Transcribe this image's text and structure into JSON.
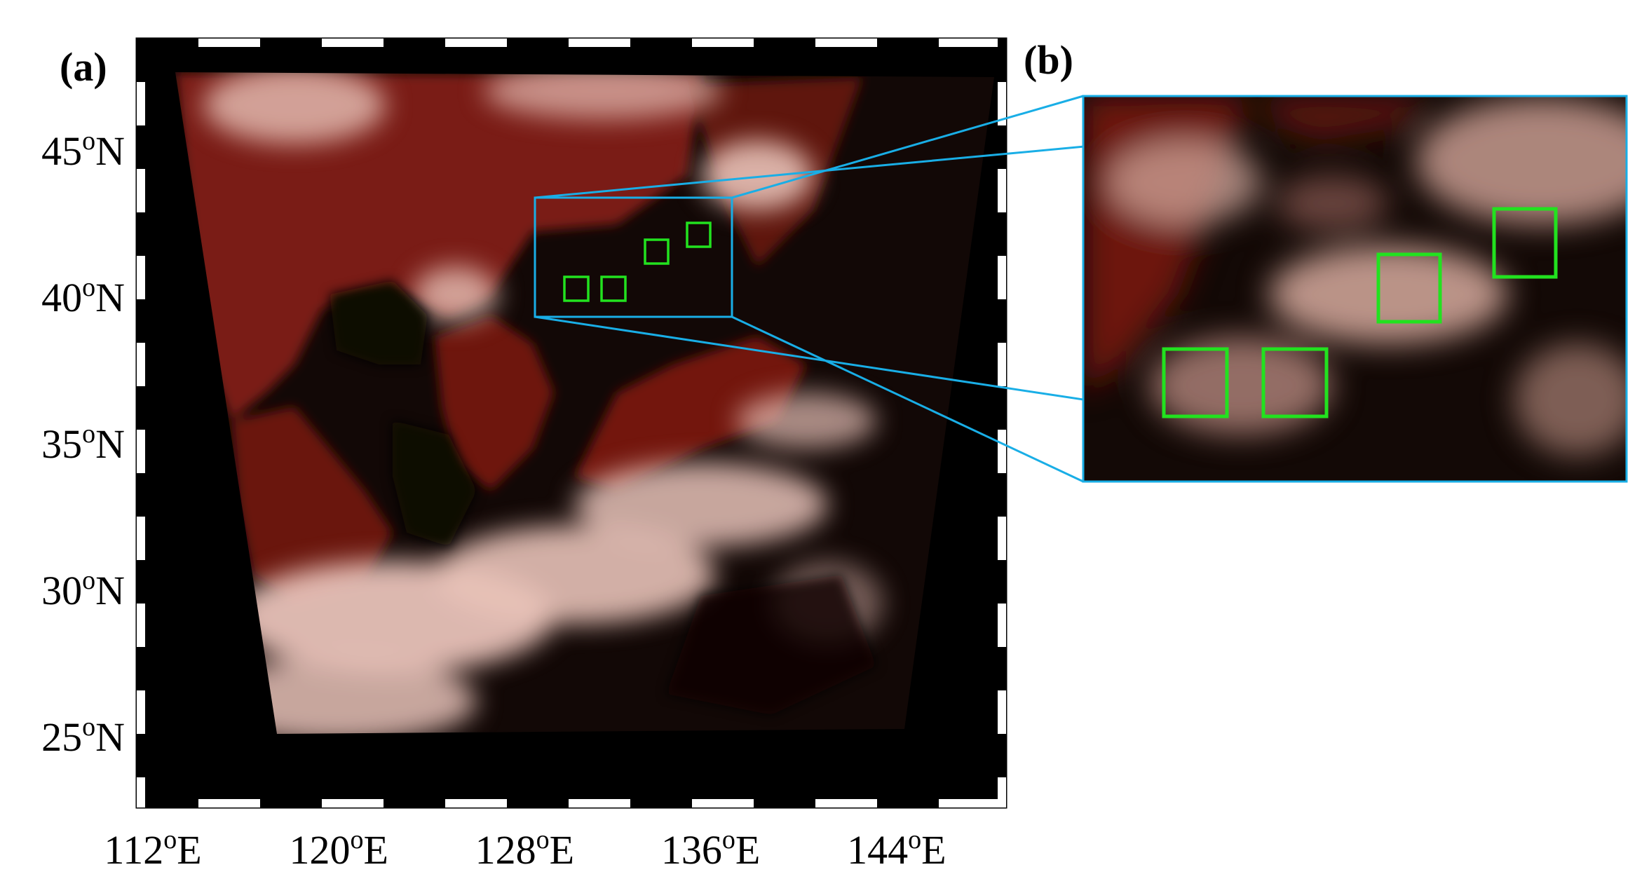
{
  "figure": {
    "panels": [
      {
        "id": "a",
        "label": "(a)"
      },
      {
        "id": "b",
        "label": "(b)"
      }
    ],
    "map": {
      "lat_ticks": [
        {
          "value": 45,
          "deg": "45",
          "sup": "o",
          "hemi": "N"
        },
        {
          "value": 40,
          "deg": "40",
          "sup": "o",
          "hemi": "N"
        },
        {
          "value": 35,
          "deg": "35",
          "sup": "o",
          "hemi": "N"
        },
        {
          "value": 30,
          "deg": "30",
          "sup": "o",
          "hemi": "N"
        },
        {
          "value": 25,
          "deg": "25",
          "sup": "o",
          "hemi": "N"
        }
      ],
      "lon_ticks": [
        {
          "value": 112,
          "deg": "112",
          "sup": "o",
          "hemi": "E"
        },
        {
          "value": 120,
          "deg": "120",
          "sup": "o",
          "hemi": "E"
        },
        {
          "value": 128,
          "deg": "128",
          "sup": "o",
          "hemi": "E"
        },
        {
          "value": 136,
          "deg": "136",
          "sup": "o",
          "hemi": "E"
        },
        {
          "value": 144,
          "deg": "144",
          "sup": "o",
          "hemi": "E"
        }
      ],
      "zoom_region": {
        "lon": [
          129,
          137
        ],
        "lat": [
          39.7,
          43.7
        ]
      },
      "marked_boxes_count": 4
    },
    "colors": {
      "frame_black": "#000000",
      "zoom_outline": "#19aee6",
      "box_outline": "#22e21f",
      "land_red": "#7a1a12",
      "cloud_pink": "#e8c2b8",
      "ocean_dark": "#0d0705"
    }
  }
}
